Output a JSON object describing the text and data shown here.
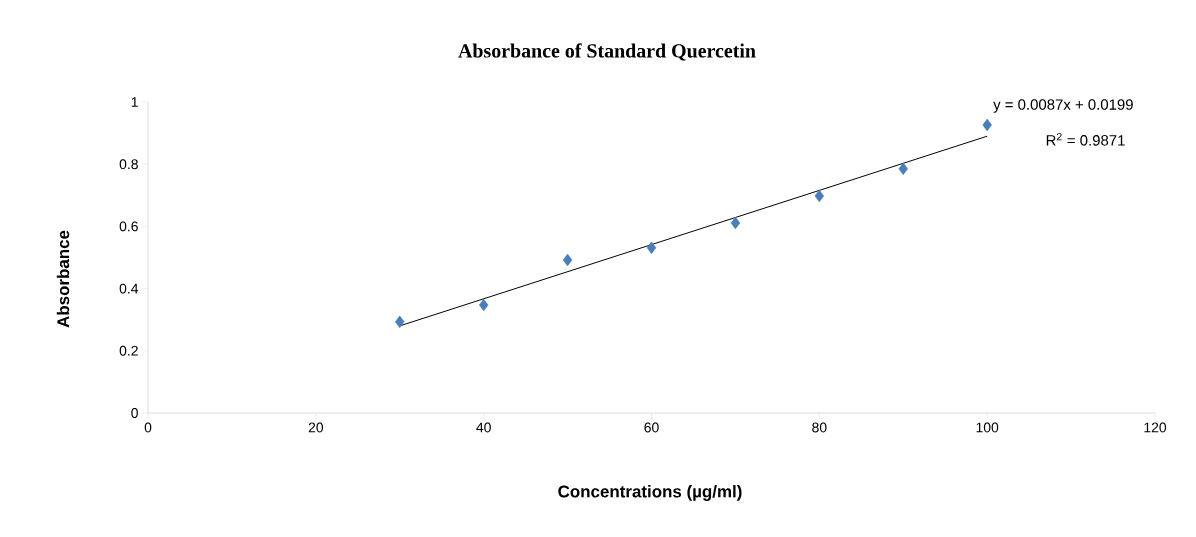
{
  "chart_data": {
    "type": "scatter",
    "title": "Absorbance of Standard Quercetin",
    "xlabel": "Concentrations  (µg/ml)",
    "ylabel": "Absorbance",
    "x": [
      30,
      40,
      50,
      60,
      70,
      80,
      90,
      100
    ],
    "series": [
      {
        "color": "#4a7ebb",
        "values": [
          0.293,
          0.347,
          0.492,
          0.531,
          0.611,
          0.698,
          0.785,
          0.926
        ],
        "marker": "diamond"
      },
      {
        "type": "line",
        "color": "#000000",
        "x": [
          30,
          100
        ],
        "values": [
          0.28,
          0.89
        ],
        "marker": "none"
      }
    ],
    "annotations": [
      "y = 0.0087x + 0.0199",
      "R$^{2}$ = 0.9871"
    ],
    "xlim": [
      0,
      120
    ],
    "xticks": [
      0,
      20,
      40,
      60,
      80,
      100,
      120
    ],
    "ylim": [
      0,
      1
    ],
    "yticks": [
      0,
      0.2,
      0.4,
      0.6,
      0.8,
      1
    ],
    "grid": false
  }
}
